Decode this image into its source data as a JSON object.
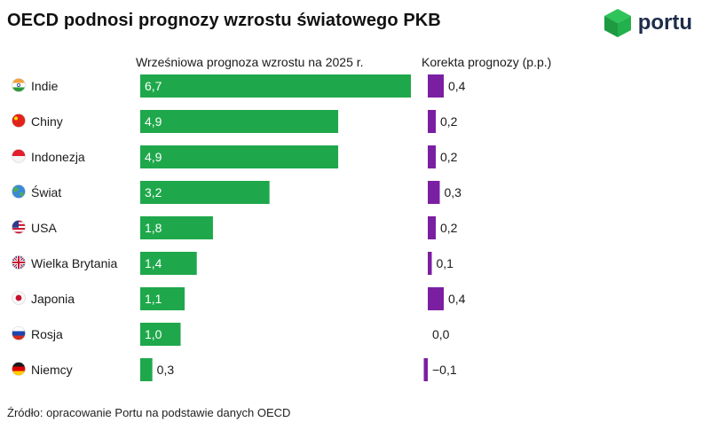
{
  "header": {
    "title": "OECD podnosi prognozy wzrostu światowego PKB"
  },
  "logo": {
    "text": "portu"
  },
  "footer": {
    "source": "Źródło: opracowanie Portu na  podstawie danych OECD"
  },
  "colors": {
    "growth_bar": "#1fa84b",
    "correction_bar": "#7b1fa2",
    "text": "#1a1a1a",
    "logo_green": "#22b14c",
    "logo_dark": "#1e2d4a"
  },
  "chart_data": [
    {
      "type": "bar",
      "orientation": "horizontal",
      "title": "Wrześniowa prognoza wzrostu na 2025 r.",
      "categories": [
        "Indie",
        "Chiny",
        "Indonezja",
        "Świat",
        "USA",
        "Wielka Brytania",
        "Japonia",
        "Rosja",
        "Niemcy"
      ],
      "values": [
        6.7,
        4.9,
        4.9,
        3.2,
        1.8,
        1.4,
        1.1,
        1.0,
        0.3
      ],
      "labels": [
        "6,7",
        "4,9",
        "4,9",
        "3,2",
        "1,8",
        "1,4",
        "1,1",
        "1,0",
        "0,3"
      ],
      "xlim": [
        0,
        6.7
      ],
      "grid": false,
      "legend": "none"
    },
    {
      "type": "bar",
      "orientation": "horizontal",
      "title": "Korekta prognozy (p.p.)",
      "categories": [
        "Indie",
        "Chiny",
        "Indonezja",
        "Świat",
        "USA",
        "Wielka Brytania",
        "Japonia",
        "Rosja",
        "Niemcy"
      ],
      "values": [
        0.4,
        0.2,
        0.2,
        0.3,
        0.2,
        0.1,
        0.4,
        0.0,
        -0.1
      ],
      "labels": [
        "0,4",
        "0,2",
        "0,2",
        "0,3",
        "0,2",
        "0,1",
        "0,4",
        "0,0",
        "−0,1"
      ],
      "xlim": [
        -0.1,
        0.4
      ],
      "grid": false,
      "legend": "none"
    }
  ],
  "flags": [
    "india-flag-icon",
    "china-flag-icon",
    "indonesia-flag-icon",
    "globe-icon",
    "usa-flag-icon",
    "uk-flag-icon",
    "japan-flag-icon",
    "russia-flag-icon",
    "germany-flag-icon"
  ]
}
